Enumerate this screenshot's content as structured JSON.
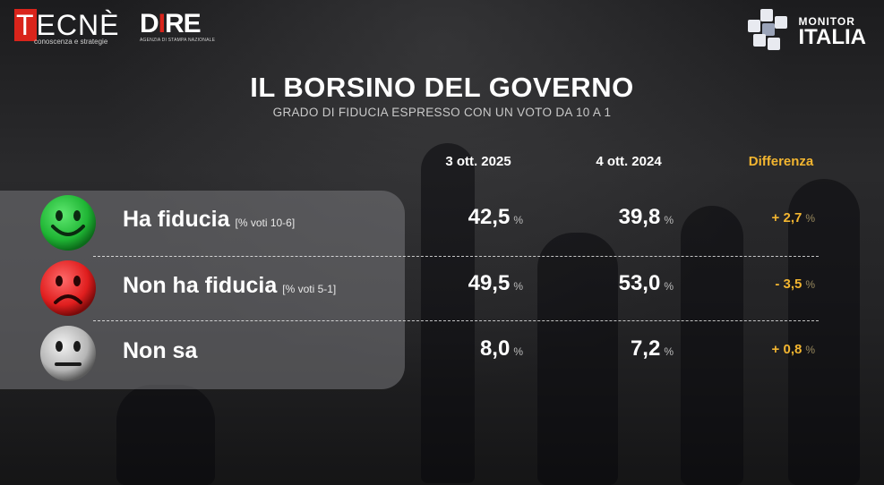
{
  "logos": {
    "tecne": {
      "word": "TECNÈ",
      "tagline": "conoscenza e strategie"
    },
    "dire": {
      "word": "DIRE",
      "tagline": "AGENZIA DI STAMPA NAZIONALE"
    },
    "monitor": {
      "line1": "MONITOR",
      "line2": "ITALIA"
    }
  },
  "title": "IL BORSINO DEL GOVERNO",
  "subtitle": "GRADO DI FIDUCIA ESPRESSO CON UN VOTO DA 10  A 1",
  "colors": {
    "accent": "#f2b530",
    "green": "#1fb534",
    "red": "#e01e1e",
    "grey": "#bdbdbd"
  },
  "chart_data": {
    "type": "table",
    "columns": [
      "3 ott. 2025",
      "4 ott. 2024",
      "Differenza"
    ],
    "unit": "%",
    "rows": [
      {
        "label": "Ha fiducia",
        "note": "[% voti 10-6]",
        "icon": "green-happy-face-icon",
        "v2025": "42,5",
        "v2024": "39,8",
        "diff": "+ 2,7"
      },
      {
        "label": "Non ha fiducia",
        "note": "[% voti 5-1]",
        "icon": "red-sad-face-icon",
        "v2025": "49,5",
        "v2024": "53,0",
        "diff": "- 3,5"
      },
      {
        "label": "Non sa",
        "note": "",
        "icon": "grey-neutral-face-icon",
        "v2025": "8,0",
        "v2024": "7,2",
        "diff": "+ 0,8"
      }
    ]
  }
}
